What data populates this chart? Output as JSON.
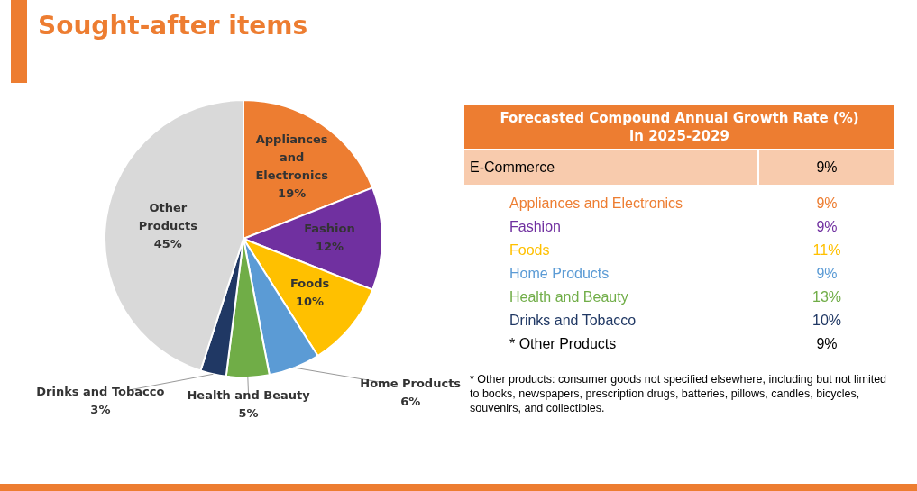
{
  "chart_data": [
    {
      "type": "pie",
      "title": "Sought-after items",
      "categories": [
        "Appliances and Electronics",
        "Fashion",
        "Foods",
        "Home Products",
        "Health and Beauty",
        "Drinks and Tobacco",
        "Other Products"
      ],
      "values": [
        19,
        12,
        10,
        6,
        5,
        3,
        45
      ],
      "colors": [
        "#ed7d31",
        "#7030a0",
        "#ffc000",
        "#5b9bd5",
        "#70ad47",
        "#203864",
        "#d9d9d9"
      ],
      "value_labels": [
        "19%",
        "12%",
        "10%",
        "6%",
        "5%",
        "3%",
        "45%"
      ],
      "legend": false
    },
    {
      "type": "other",
      "title": "Forecasted Compound Annual Growth Rate (%) in 2025-2029",
      "categories": [
        "E-Commerce",
        "Appliances and Electronics",
        "Fashion",
        "Foods",
        "Home Products",
        "Health and Beauty",
        "Drinks and Tobacco",
        "* Other Products"
      ],
      "value_labels": [
        "9%",
        "9%",
        "9%",
        "11%",
        "9%",
        "13%",
        "10%",
        "9%"
      ],
      "colors": [
        "#f8cbad",
        "#ed7d31",
        "#7030a0",
        "#ffc000",
        "#5b9bd5",
        "#70ad47",
        "#203864",
        "#000000"
      ],
      "annotations": [
        "* Other products: consumer goods not specified elsewhere, including but not limited to books, newspapers, prescription drugs, batteries, pillows, candles, bicycles, souvenirs, and collectibles."
      ]
    }
  ]
}
